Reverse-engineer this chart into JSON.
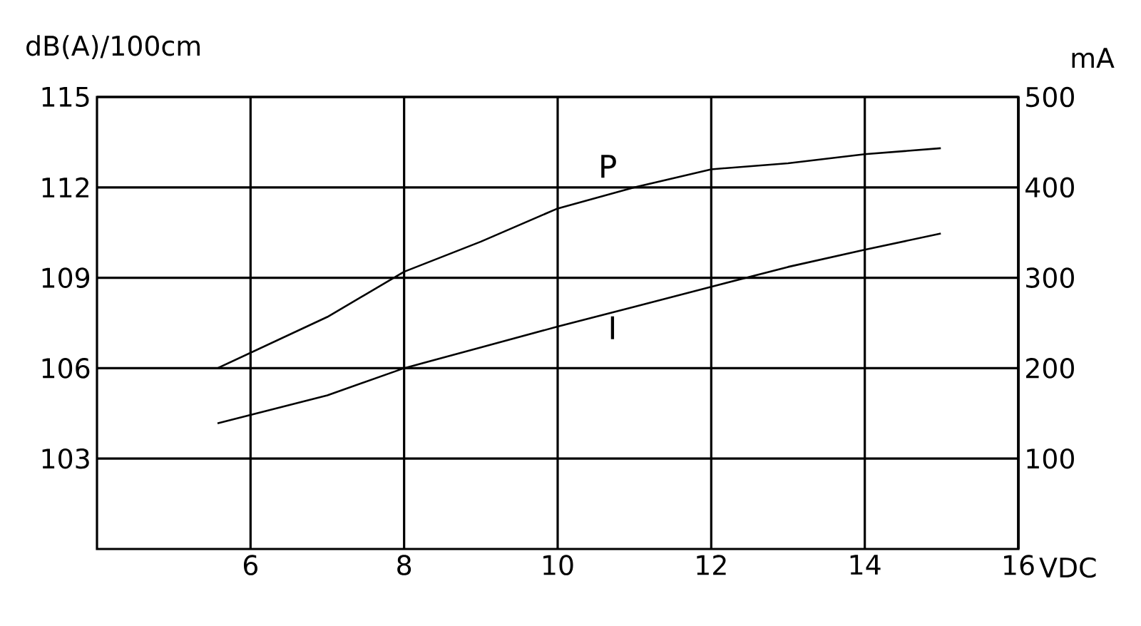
{
  "chart_data": {
    "type": "line",
    "ylabel": "dB(A)/100cm",
    "y2label": "mA",
    "xlabel": "VDC",
    "xlim": [
      4,
      16
    ],
    "xticks": [
      6,
      8,
      10,
      12,
      14,
      16
    ],
    "ylim": [
      100,
      115
    ],
    "yticks": [
      103,
      106,
      109,
      112,
      115
    ],
    "y2lim": [
      0,
      500
    ],
    "y2ticks": [
      100,
      200,
      300,
      400,
      500
    ],
    "grid": true,
    "marker": "none",
    "line_style": "solid",
    "series": [
      {
        "name": "P",
        "color": "#000000",
        "x": [
          5.57,
          7,
          8,
          9,
          10,
          11,
          12,
          13,
          14,
          14.99
        ],
        "values": [
          106,
          107.7,
          109.2,
          110.2,
          111.3,
          112,
          112.6,
          112.8,
          113.1,
          113.3
        ]
      },
      {
        "name": "I",
        "color": "#000000",
        "axis": "y2",
        "x": [
          5.57,
          7,
          8,
          9,
          10,
          11,
          12,
          13,
          14,
          14.99
        ],
        "values": [
          139,
          170,
          200,
          223,
          246,
          268,
          290,
          312,
          331,
          349
        ]
      }
    ]
  }
}
